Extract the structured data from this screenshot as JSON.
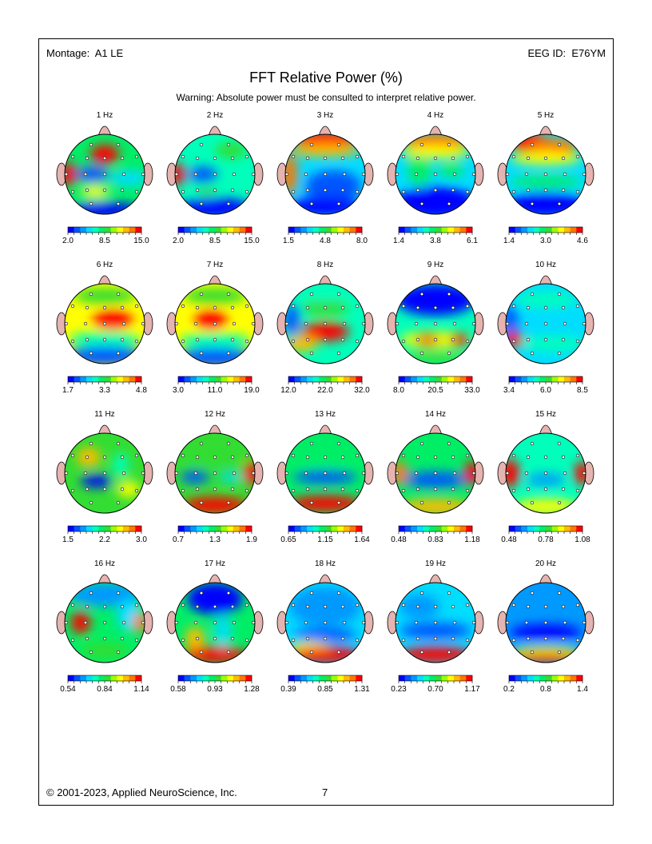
{
  "header": {
    "montage_label": "Montage:",
    "montage_value": "A1 LE",
    "eeg_label": "EEG ID:",
    "eeg_value": "E76YM"
  },
  "title": "FFT Relative Power  (%)",
  "warning": "Warning:  Absolute power must be consulted to interpret relative power.",
  "colormap": [
    "#0000ff",
    "#0055ff",
    "#0099ff",
    "#00ddff",
    "#00ffbb",
    "#00ee66",
    "#33dd33",
    "#99ff00",
    "#ffff00",
    "#ffbb00",
    "#ff7700",
    "#ff0000"
  ],
  "maps": [
    {
      "title": "1 Hz",
      "scale": [
        "2.0",
        "8.5",
        "15.0"
      ]
    },
    {
      "title": "2 Hz",
      "scale": [
        "2.0",
        "8.5",
        "15.0"
      ]
    },
    {
      "title": "3 Hz",
      "scale": [
        "1.5",
        "4.8",
        "8.0"
      ]
    },
    {
      "title": "4 Hz",
      "scale": [
        "1.4",
        "3.8",
        "6.1"
      ]
    },
    {
      "title": "5 Hz",
      "scale": [
        "1.4",
        "3.0",
        "4.6"
      ]
    },
    {
      "title": "6 Hz",
      "scale": [
        "1.7",
        "3.3",
        "4.8"
      ]
    },
    {
      "title": "7 Hz",
      "scale": [
        "3.0",
        "11.0",
        "19.0"
      ]
    },
    {
      "title": "8 Hz",
      "scale": [
        "12.0",
        "22.0",
        "32.0"
      ]
    },
    {
      "title": "9 Hz",
      "scale": [
        "8.0",
        "20.5",
        "33.0"
      ]
    },
    {
      "title": "10 Hz",
      "scale": [
        "3.4",
        "6.0",
        "8.5"
      ]
    },
    {
      "title": "11 Hz",
      "scale": [
        "1.5",
        "2.2",
        "3.0"
      ]
    },
    {
      "title": "12 Hz",
      "scale": [
        "0.7",
        "1.3",
        "1.9"
      ]
    },
    {
      "title": "13 Hz",
      "scale": [
        "0.65",
        "1.15",
        "1.64"
      ]
    },
    {
      "title": "14 Hz",
      "scale": [
        "0.48",
        "0.83",
        "1.18"
      ]
    },
    {
      "title": "15 Hz",
      "scale": [
        "0.48",
        "0.78",
        "1.08"
      ]
    },
    {
      "title": "16 Hz",
      "scale": [
        "0.54",
        "0.84",
        "1.14"
      ]
    },
    {
      "title": "17 Hz",
      "scale": [
        "0.58",
        "0.93",
        "1.28"
      ]
    },
    {
      "title": "18 Hz",
      "scale": [
        "0.39",
        "0.85",
        "1.31"
      ]
    },
    {
      "title": "19 Hz",
      "scale": [
        "0.23",
        "0.70",
        "1.17"
      ]
    },
    {
      "title": "20 Hz",
      "scale": [
        "0.2",
        "0.8",
        "1.4"
      ]
    }
  ],
  "footer": {
    "copyright": "© 2001-2023, Applied NeuroScience, Inc.",
    "page_number": "7"
  }
}
